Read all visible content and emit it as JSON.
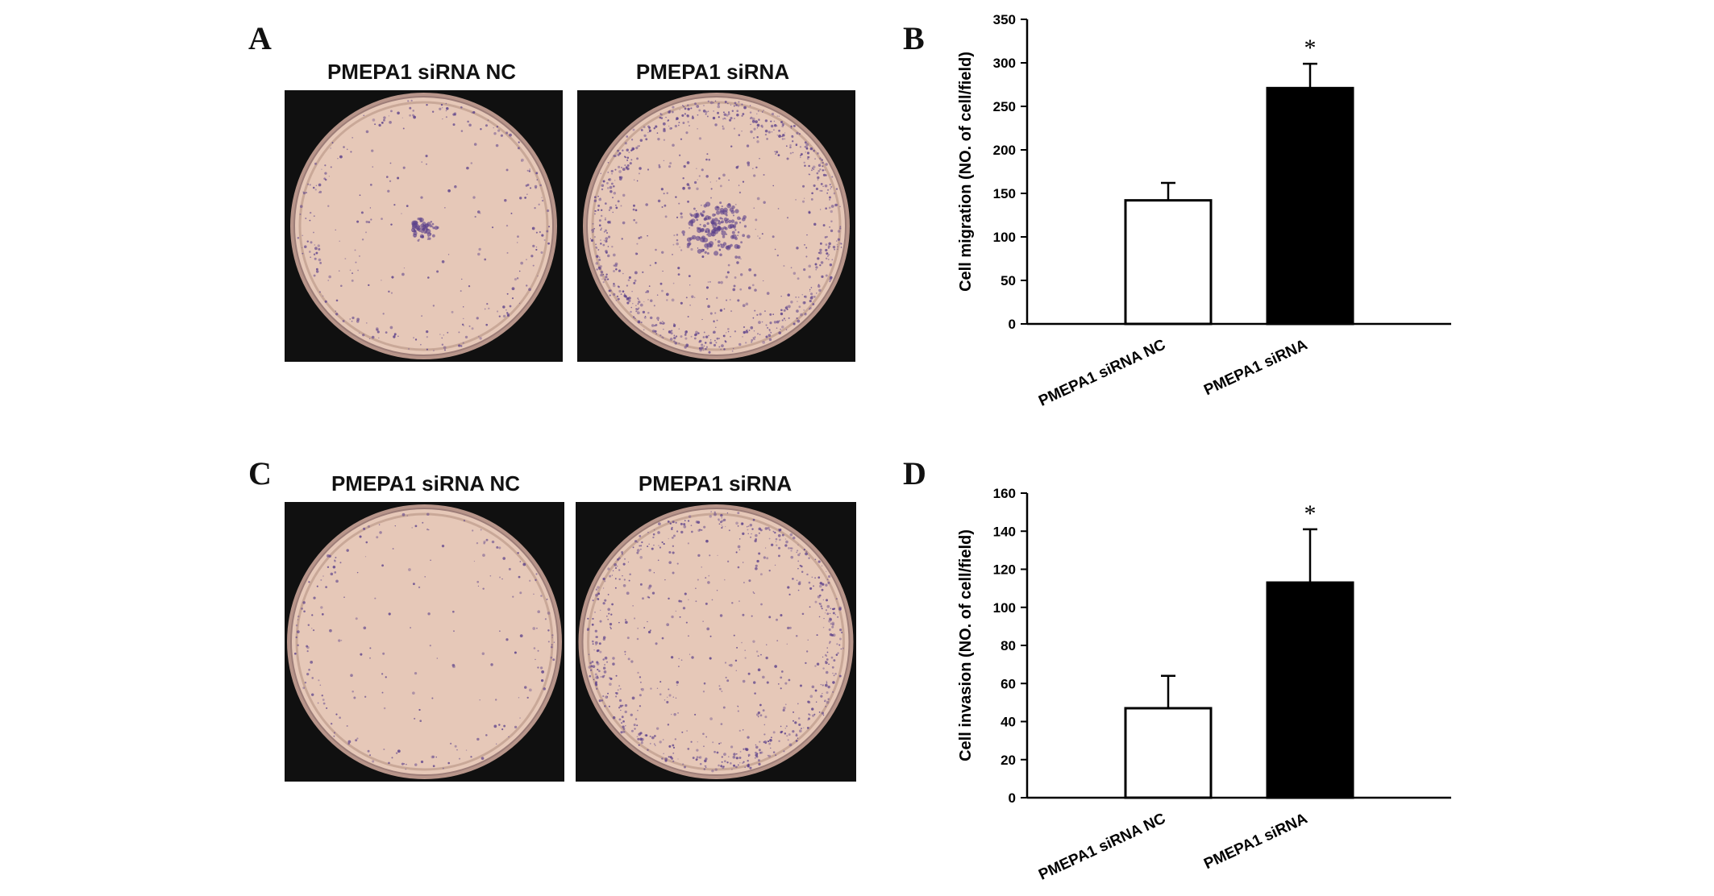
{
  "panels": {
    "A": {
      "letter": "A",
      "left_label": "PMEPA1 siRNA NC",
      "right_label": "PMEPA1 siRNA"
    },
    "C": {
      "letter": "C",
      "left_label": "PMEPA1 siRNA NC",
      "right_label": "PMEPA1 siRNA"
    },
    "B": {
      "letter": "B"
    },
    "D": {
      "letter": "D"
    }
  },
  "colors": {
    "dish_fill": "#e6c8b8",
    "dish_rim": "#b8958a",
    "stain": "#5a3f8a",
    "bar_nc": "#ffffff",
    "bar_sirna": "#000000"
  },
  "chart_data": [
    {
      "panel": "B",
      "type": "bar",
      "categories": [
        "PMEPA1 siRNA NC",
        "PMEPA1 siRNA"
      ],
      "values": [
        142,
        271
      ],
      "errors": [
        20,
        28
      ],
      "significance": [
        "",
        "*"
      ],
      "ylabel": "Cell migration (NO. of cell/field)",
      "ylim": [
        0,
        350
      ],
      "yticks": [
        0,
        50,
        100,
        150,
        200,
        250,
        300,
        350
      ],
      "bar_colors": [
        "#ffffff",
        "#000000"
      ]
    },
    {
      "panel": "D",
      "type": "bar",
      "categories": [
        "PMEPA1 siRNA NC",
        "PMEPA1 siRNA"
      ],
      "values": [
        47,
        113
      ],
      "errors": [
        17,
        28
      ],
      "significance": [
        "",
        "*"
      ],
      "ylabel": "Cell invasion (NO. of cell/field)",
      "ylim": [
        0,
        160
      ],
      "yticks": [
        0,
        20,
        40,
        60,
        80,
        100,
        120,
        140,
        160
      ],
      "bar_colors": [
        "#ffffff",
        "#000000"
      ]
    }
  ]
}
